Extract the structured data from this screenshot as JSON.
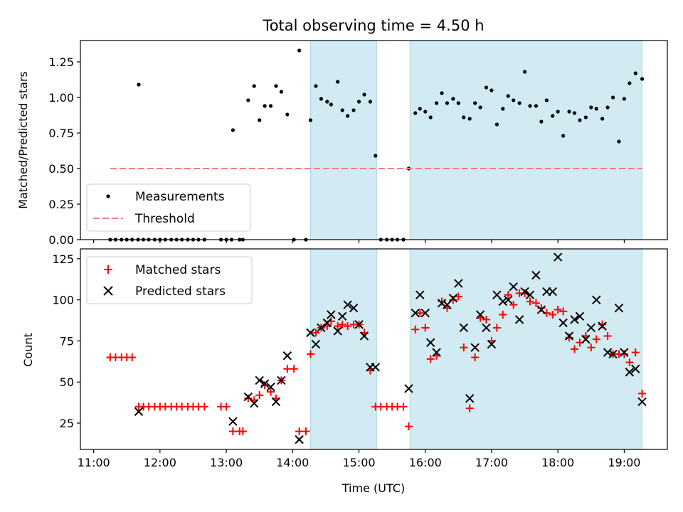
{
  "chart_data": [
    {
      "type": "scatter",
      "title": "Total observing time = 4.50 h",
      "ylabel": "Matched/Predicted stars",
      "ylim": [
        0,
        1.4
      ],
      "yticks": [
        0.0,
        0.25,
        0.5,
        0.75,
        1.0,
        1.25
      ],
      "ytick_labels": [
        "0.00",
        "0.25",
        "0.50",
        "0.75",
        "1.00",
        "1.25"
      ],
      "xlim": [
        10.8,
        19.65
      ],
      "xticks": [
        11,
        12,
        13,
        14,
        15,
        16,
        17,
        18,
        19
      ],
      "shaded_intervals": [
        [
          14.27,
          15.27
        ],
        [
          15.77,
          19.27
        ]
      ],
      "shade_color": "#add8e6",
      "legend_position": "lower-left",
      "series": [
        {
          "name": "Measurements",
          "marker": "dot",
          "color": "#000000",
          "x": [
            11.25,
            11.33,
            11.42,
            11.5,
            11.58,
            11.67,
            11.68,
            11.75,
            11.83,
            11.92,
            12.0,
            12.08,
            12.17,
            12.25,
            12.33,
            12.42,
            12.5,
            12.58,
            12.67,
            12.92,
            13.0,
            13.08,
            13.1,
            13.2,
            13.25,
            13.33,
            13.42,
            13.5,
            13.58,
            13.67,
            13.75,
            13.83,
            13.92,
            14.02,
            14.1,
            14.2,
            14.27,
            14.35,
            14.43,
            14.52,
            14.58,
            14.68,
            14.75,
            14.83,
            14.92,
            15.0,
            15.08,
            15.17,
            15.25,
            15.33,
            15.42,
            15.5,
            15.58,
            15.67,
            15.75,
            15.85,
            15.92,
            16.0,
            16.08,
            16.17,
            16.25,
            16.33,
            16.42,
            16.5,
            16.58,
            16.67,
            16.75,
            16.83,
            16.92,
            17.0,
            17.08,
            17.17,
            17.25,
            17.33,
            17.42,
            17.5,
            17.58,
            17.67,
            17.75,
            17.83,
            17.92,
            18.0,
            18.08,
            18.17,
            18.25,
            18.33,
            18.42,
            18.5,
            18.58,
            18.67,
            18.75,
            18.83,
            18.92,
            19.0,
            19.08,
            19.17,
            19.27
          ],
          "y": [
            0,
            0,
            0,
            0,
            0,
            0,
            1.09,
            0,
            0,
            0,
            0,
            0,
            0,
            0,
            0,
            0,
            0,
            0,
            0,
            0,
            0,
            0,
            0.77,
            0,
            0,
            0.98,
            1.08,
            0.84,
            0.94,
            0.94,
            1.08,
            1.04,
            0.88,
            0,
            1.33,
            0,
            0.84,
            1.08,
            0.99,
            0.97,
            0.95,
            1.11,
            0.91,
            0.87,
            0.91,
            0.97,
            1.02,
            0.97,
            0.59,
            0,
            0,
            0,
            0,
            0,
            0.5,
            0.89,
            0.92,
            0.9,
            0.86,
            0.96,
            1.03,
            0.96,
            0.99,
            0.96,
            0.86,
            0.85,
            0.96,
            0.93,
            1.07,
            1.05,
            0.81,
            0.92,
            1.01,
            0.98,
            0.96,
            1.18,
            0.94,
            0.94,
            0.83,
            0.98,
            0.87,
            0.9,
            0.73,
            0.9,
            0.89,
            0.84,
            0.86,
            0.93,
            0.92,
            0.85,
            0.93,
            1.0,
            0.69,
            0.99,
            1.1,
            1.17,
            1.13
          ]
        },
        {
          "name": "Threshold",
          "marker": "dashed-line",
          "color": "#f08080",
          "x": [
            11.25,
            19.27
          ],
          "y": [
            0.5,
            0.5
          ]
        }
      ]
    },
    {
      "type": "scatter",
      "xlabel": "Time (UTC)",
      "ylabel": "Count",
      "ylim": [
        9,
        131
      ],
      "yticks": [
        25,
        50,
        75,
        100,
        125
      ],
      "ytick_labels": [
        "25",
        "50",
        "75",
        "100",
        "125"
      ],
      "xlim": [
        10.8,
        19.65
      ],
      "xticks": [
        11,
        12,
        13,
        14,
        15,
        16,
        17,
        18,
        19
      ],
      "xtick_labels": [
        "11:00",
        "12:00",
        "13:00",
        "14:00",
        "15:00",
        "16:00",
        "17:00",
        "18:00",
        "19:00"
      ],
      "shaded_intervals": [
        [
          14.27,
          15.27
        ],
        [
          15.77,
          19.27
        ]
      ],
      "shade_color": "#add8e6",
      "legend_position": "upper-left",
      "series": [
        {
          "name": "Matched stars",
          "marker": "plus",
          "color": "#ff0000",
          "x": [
            11.25,
            11.33,
            11.42,
            11.5,
            11.58,
            11.68,
            11.75,
            11.83,
            11.92,
            12.0,
            12.08,
            12.17,
            12.25,
            12.33,
            12.42,
            12.5,
            12.58,
            12.67,
            12.92,
            13.0,
            13.1,
            13.2,
            13.25,
            13.33,
            13.42,
            13.5,
            13.58,
            13.67,
            13.75,
            13.83,
            13.92,
            14.02,
            14.1,
            14.2,
            14.27,
            14.35,
            14.43,
            14.52,
            14.58,
            14.68,
            14.75,
            14.83,
            14.92,
            15.0,
            15.08,
            15.17,
            15.25,
            15.33,
            15.42,
            15.5,
            15.58,
            15.67,
            15.75,
            15.85,
            15.92,
            16.0,
            16.08,
            16.17,
            16.25,
            16.33,
            16.42,
            16.5,
            16.58,
            16.67,
            16.75,
            16.83,
            16.92,
            17.0,
            17.08,
            17.17,
            17.25,
            17.33,
            17.42,
            17.5,
            17.58,
            17.67,
            17.75,
            17.83,
            17.92,
            18.0,
            18.08,
            18.17,
            18.25,
            18.33,
            18.42,
            18.5,
            18.58,
            18.67,
            18.75,
            18.83,
            18.92,
            19.0,
            19.08,
            19.17,
            19.27
          ],
          "y": [
            65,
            65,
            65,
            65,
            65,
            35,
            35,
            35,
            35,
            35,
            35,
            35,
            35,
            35,
            35,
            35,
            35,
            35,
            35,
            35,
            20,
            20,
            20,
            40,
            39,
            42,
            48,
            44,
            40,
            51,
            58,
            58,
            20,
            20,
            67,
            80,
            83,
            84,
            87,
            84,
            85,
            84,
            85,
            85,
            80,
            57,
            35,
            35,
            35,
            35,
            35,
            35,
            23,
            82,
            92,
            83,
            64,
            66,
            99,
            95,
            100,
            102,
            71,
            34,
            65,
            89,
            88,
            75,
            83,
            91,
            103,
            97,
            104,
            104,
            99,
            98,
            95,
            92,
            91,
            94,
            93,
            77,
            70,
            74,
            78,
            71,
            76,
            85,
            78,
            67,
            67,
            67,
            62,
            68,
            43
          ]
        },
        {
          "name": "Predicted stars",
          "marker": "x",
          "color": "#000000",
          "x": [
            11.68,
            13.1,
            13.33,
            13.42,
            13.5,
            13.58,
            13.67,
            13.75,
            13.83,
            13.92,
            14.1,
            14.27,
            14.35,
            14.43,
            14.52,
            14.58,
            14.68,
            14.75,
            14.83,
            14.92,
            15.0,
            15.08,
            15.17,
            15.25,
            15.75,
            15.85,
            15.92,
            16.0,
            16.08,
            16.17,
            16.25,
            16.33,
            16.42,
            16.5,
            16.58,
            16.67,
            16.75,
            16.83,
            16.92,
            17.0,
            17.08,
            17.17,
            17.25,
            17.33,
            17.42,
            17.5,
            17.58,
            17.67,
            17.75,
            17.83,
            17.92,
            18.0,
            18.08,
            18.17,
            18.25,
            18.33,
            18.42,
            18.5,
            18.58,
            18.67,
            18.75,
            18.83,
            18.92,
            19.0,
            19.08,
            19.17,
            19.27
          ],
          "y": [
            32,
            26,
            41,
            37,
            51,
            49,
            47,
            38,
            51,
            66,
            15,
            80,
            73,
            83,
            86,
            91,
            81,
            90,
            97,
            95,
            85,
            78,
            59,
            59,
            46,
            92,
            103,
            92,
            74,
            68,
            98,
            97,
            101,
            110,
            83,
            40,
            71,
            91,
            83,
            73,
            103,
            99,
            100,
            108,
            88,
            105,
            103,
            115,
            94,
            105,
            105,
            126,
            86,
            78,
            88,
            90,
            76,
            83,
            100,
            84,
            68,
            67,
            95,
            68,
            56,
            58,
            38
          ]
        }
      ]
    }
  ]
}
